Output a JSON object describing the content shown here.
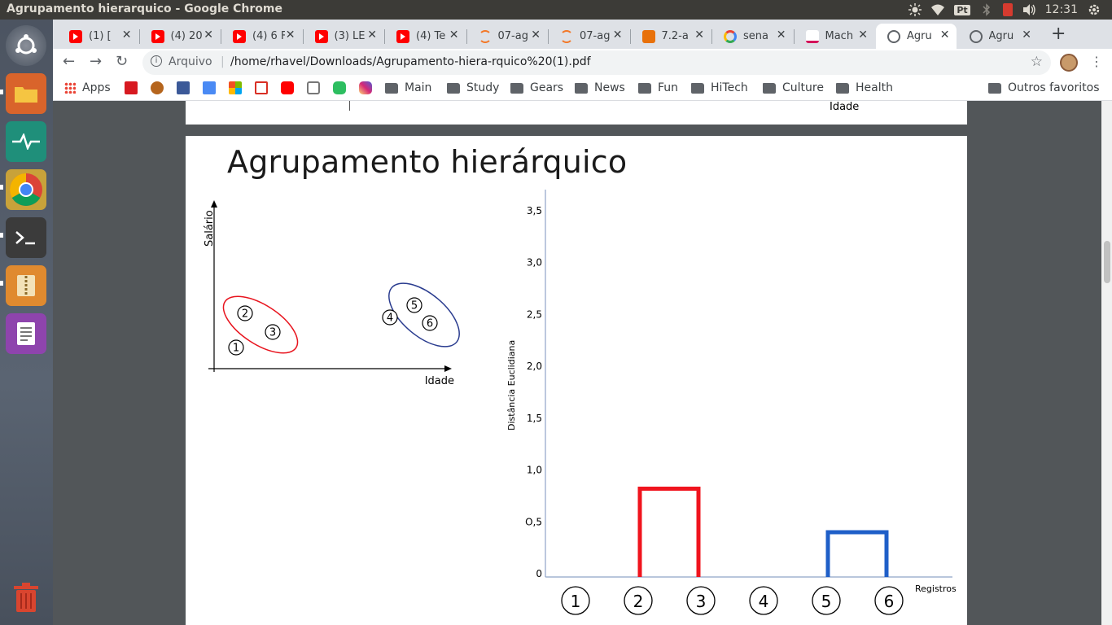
{
  "window": {
    "title": "Agrupamento hierarquico - Google Chrome"
  },
  "tray": {
    "keyboard": "Pt",
    "clock": "12:31"
  },
  "launcher": {
    "items": [
      {
        "name": "ubuntu-dash-icon",
        "color": "#6b4f8a"
      },
      {
        "name": "files-icon",
        "color": "#d9642b"
      },
      {
        "name": "system-monitor-icon",
        "color": "#1f8f7a"
      },
      {
        "name": "chrome-icon",
        "color": "#5c6470"
      },
      {
        "name": "terminal-icon",
        "color": "#3b3b3b"
      },
      {
        "name": "archive-manager-icon",
        "color": "#e08a2f"
      },
      {
        "name": "text-editor-icon",
        "color": "#8e44ad"
      },
      {
        "name": "trash-icon",
        "color": "#c0392b"
      }
    ]
  },
  "tabs": [
    {
      "label": "(1) [",
      "favicon": "youtube"
    },
    {
      "label": "(4) 20",
      "favicon": "youtube"
    },
    {
      "label": "(4) 6 F",
      "favicon": "youtube"
    },
    {
      "label": "(3) LE",
      "favicon": "youtube"
    },
    {
      "label": "(4) Te",
      "favicon": "youtube"
    },
    {
      "label": "07-ag",
      "favicon": "jupyter"
    },
    {
      "label": "07-ag",
      "favicon": "jupyter"
    },
    {
      "label": "7.2-a",
      "favicon": "book"
    },
    {
      "label": "sena",
      "favicon": "google"
    },
    {
      "label": "Mach",
      "favicon": "coursera"
    },
    {
      "label": "Agru",
      "favicon": "globe",
      "active": true
    },
    {
      "label": "Agru",
      "favicon": "globe"
    }
  ],
  "toolbar": {
    "omnibox_prefix": "Arquivo",
    "omnibox_separator": "|",
    "url": "/home/rhavel/Downloads/Agrupamento-hiera-rquico%20(1).pdf"
  },
  "bookmarks": {
    "apps_label": "Apps",
    "folders": [
      "Main",
      "Study",
      "Gears",
      "News",
      "Fun",
      "HiTech",
      "Culture",
      "Health"
    ],
    "other": "Outros favoritos"
  },
  "pdf": {
    "prev_page_text": "Idade",
    "slide_title": "Agrupamento hierárquico",
    "scatter": {
      "xlabel": "Idade",
      "ylabel": "Salário",
      "points": [
        "1",
        "2",
        "3",
        "4",
        "5",
        "6"
      ],
      "cluster_red": "#e8141e",
      "cluster_blue": "#2a3c8f"
    },
    "chart_data": {
      "type": "dendrogram",
      "ylabel": "Distância Euclidiana",
      "xlabel": "Registros",
      "y_ticks": [
        "0",
        "O,5",
        "1,0",
        "1,5",
        "2,0",
        "2,5",
        "3,0",
        "3,5"
      ],
      "ylim": [
        0,
        3.7
      ],
      "leaves": [
        "1",
        "2",
        "3",
        "4",
        "5",
        "6"
      ],
      "links": [
        {
          "left": "2",
          "right": "3",
          "height": 0.82,
          "color": "#f0141e"
        },
        {
          "left": "5",
          "right": "6",
          "height": 0.4,
          "color": "#1f5fc8"
        }
      ]
    }
  }
}
